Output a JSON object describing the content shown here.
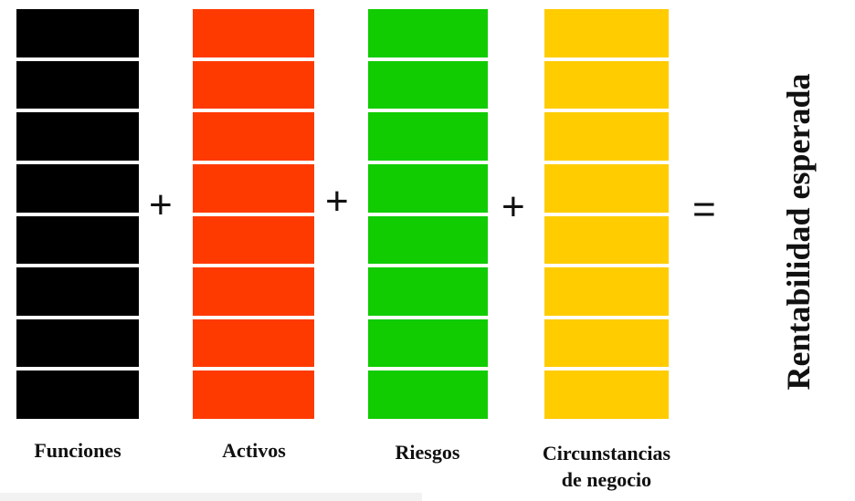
{
  "columns": [
    {
      "label": "Funciones",
      "color": "#000000"
    },
    {
      "label": "Activos",
      "color": "#ff3a00"
    },
    {
      "label": "Riesgos",
      "color": "#11cc00"
    },
    {
      "label": "Circunstancias\nde negocio",
      "color": "#ffcc00"
    }
  ],
  "operators": {
    "plus": "+",
    "equals": "="
  },
  "result": "Rentabilidad esperada",
  "blocks_per_column": 8
}
